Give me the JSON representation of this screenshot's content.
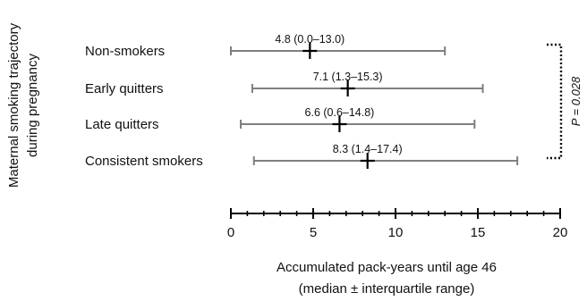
{
  "chart_data": {
    "type": "scatter",
    "orientation": "horizontal",
    "ylabel_lines": [
      "Maternal smoking trajectory",
      "during pregnancy"
    ],
    "xlabel_lines": [
      "Accumulated pack-years until age 46",
      "(median ± interquartile range)"
    ],
    "xlim": [
      0,
      20
    ],
    "major_ticks": [
      0,
      5,
      10,
      15,
      20
    ],
    "tick_labels": [
      "0",
      "5",
      "10",
      "15",
      "20"
    ],
    "minor_tick_step": 1,
    "grid": false,
    "series": [
      {
        "points": [
          {
            "category": "Non-smokers",
            "median": 4.8,
            "low": 0.0,
            "high": 13.0,
            "label": "4.8 (0.0–13.0)"
          },
          {
            "category": "Early quitters",
            "median": 7.1,
            "low": 1.3,
            "high": 15.3,
            "label": "7.1 (1.3–15.3)"
          },
          {
            "category": "Late quitters",
            "median": 6.6,
            "low": 0.6,
            "high": 14.8,
            "label": "6.6 (0.6–14.8)"
          },
          {
            "category": "Consistent smokers",
            "median": 8.3,
            "low": 1.4,
            "high": 17.4,
            "label": "8.3 (1.4–17.4)"
          }
        ]
      }
    ],
    "annotation": {
      "text": "P = 0.028",
      "spans": [
        "Non-smokers",
        "Consistent smokers"
      ]
    },
    "colors": {
      "bar": "#7f7f7f",
      "marker": "#000000",
      "axis": "#000000"
    }
  }
}
